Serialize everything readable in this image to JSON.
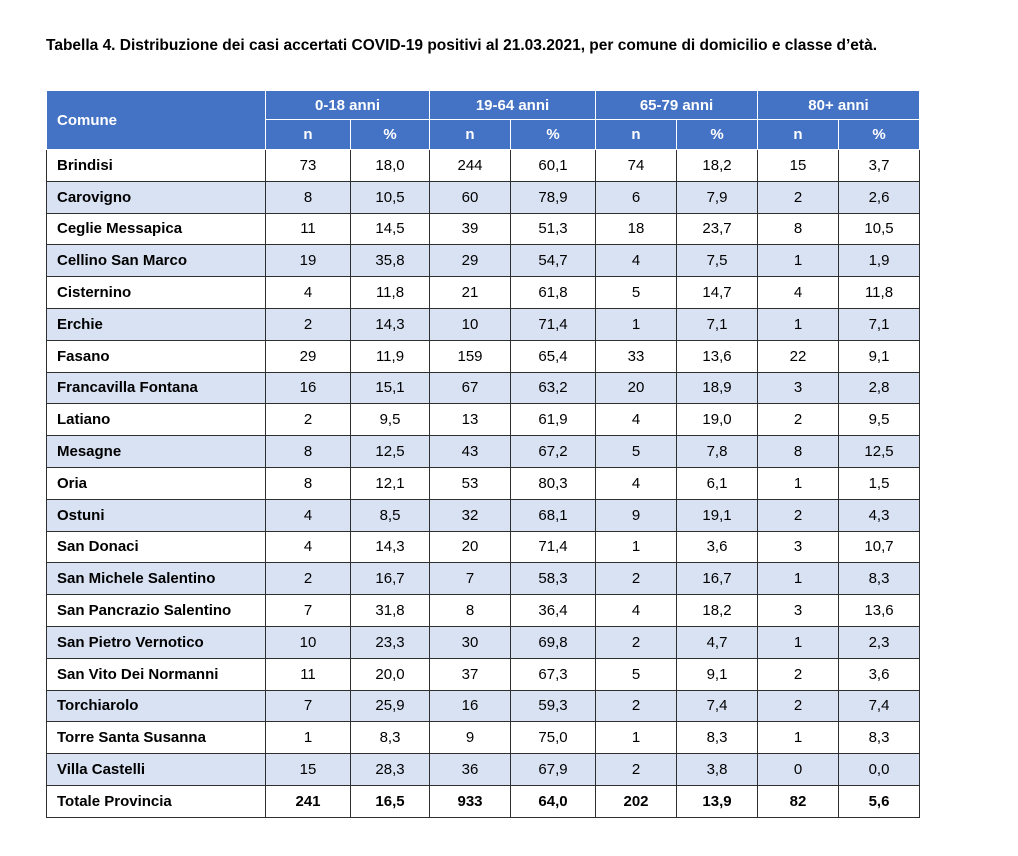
{
  "caption": "Tabella 4. Distribuzione dei casi accertati COVID-19 positivi al 21.03.2021, per comune di domicilio e classe d’età.",
  "header": {
    "comune": "Comune",
    "groups": [
      "0-18 anni",
      "19-64 anni",
      "65-79 anni",
      "80+ anni"
    ],
    "n": "n",
    "pct": "%"
  },
  "colors": {
    "header_bg": "#4472c4",
    "band_bg": "#d9e2f3"
  },
  "rows": [
    [
      "Brindisi",
      "73",
      "18,0",
      "244",
      "60,1",
      "74",
      "18,2",
      "15",
      "3,7"
    ],
    [
      "Carovigno",
      "8",
      "10,5",
      "60",
      "78,9",
      "6",
      "7,9",
      "2",
      "2,6"
    ],
    [
      "Ceglie Messapica",
      "11",
      "14,5",
      "39",
      "51,3",
      "18",
      "23,7",
      "8",
      "10,5"
    ],
    [
      "Cellino San Marco",
      "19",
      "35,8",
      "29",
      "54,7",
      "4",
      "7,5",
      "1",
      "1,9"
    ],
    [
      "Cisternino",
      "4",
      "11,8",
      "21",
      "61,8",
      "5",
      "14,7",
      "4",
      "11,8"
    ],
    [
      "Erchie",
      "2",
      "14,3",
      "10",
      "71,4",
      "1",
      "7,1",
      "1",
      "7,1"
    ],
    [
      "Fasano",
      "29",
      "11,9",
      "159",
      "65,4",
      "33",
      "13,6",
      "22",
      "9,1"
    ],
    [
      "Francavilla Fontana",
      "16",
      "15,1",
      "67",
      "63,2",
      "20",
      "18,9",
      "3",
      "2,8"
    ],
    [
      "Latiano",
      "2",
      "9,5",
      "13",
      "61,9",
      "4",
      "19,0",
      "2",
      "9,5"
    ],
    [
      "Mesagne",
      "8",
      "12,5",
      "43",
      "67,2",
      "5",
      "7,8",
      "8",
      "12,5"
    ],
    [
      "Oria",
      "8",
      "12,1",
      "53",
      "80,3",
      "4",
      "6,1",
      "1",
      "1,5"
    ],
    [
      "Ostuni",
      "4",
      "8,5",
      "32",
      "68,1",
      "9",
      "19,1",
      "2",
      "4,3"
    ],
    [
      "San Donaci",
      "4",
      "14,3",
      "20",
      "71,4",
      "1",
      "3,6",
      "3",
      "10,7"
    ],
    [
      "San Michele Salentino",
      "2",
      "16,7",
      "7",
      "58,3",
      "2",
      "16,7",
      "1",
      "8,3"
    ],
    [
      "San Pancrazio Salentino",
      "7",
      "31,8",
      "8",
      "36,4",
      "4",
      "18,2",
      "3",
      "13,6"
    ],
    [
      "San Pietro Vernotico",
      "10",
      "23,3",
      "30",
      "69,8",
      "2",
      "4,7",
      "1",
      "2,3"
    ],
    [
      "San Vito Dei Normanni",
      "11",
      "20,0",
      "37",
      "67,3",
      "5",
      "9,1",
      "2",
      "3,6"
    ],
    [
      "Torchiarolo",
      "7",
      "25,9",
      "16",
      "59,3",
      "2",
      "7,4",
      "2",
      "7,4"
    ],
    [
      "Torre Santa Susanna",
      "1",
      "8,3",
      "9",
      "75,0",
      "1",
      "8,3",
      "1",
      "8,3"
    ],
    [
      "Villa Castelli",
      "15",
      "28,3",
      "36",
      "67,9",
      "2",
      "3,8",
      "0",
      "0,0"
    ]
  ],
  "total": [
    "Totale Provincia",
    "241",
    "16,5",
    "933",
    "64,0",
    "202",
    "13,9",
    "82",
    "5,6"
  ]
}
